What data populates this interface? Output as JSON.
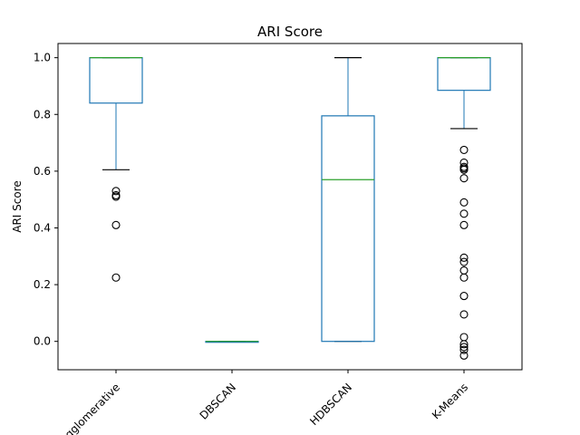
{
  "chart_data": {
    "type": "box",
    "title": "ARI Score",
    "ylabel": "ARI Score",
    "xlabel": "",
    "ylim": [
      -0.1,
      1.05
    ],
    "yticks": [
      0.0,
      0.2,
      0.4,
      0.6,
      0.8,
      1.0
    ],
    "ytick_labels": [
      "0.0",
      "0.2",
      "0.4",
      "0.6",
      "0.8",
      "1.0"
    ],
    "grid": false,
    "categories": [
      "Agglomerative",
      "DBSCAN",
      "HDBSCAN",
      "K-Means"
    ],
    "boxes": [
      {
        "category": "Agglomerative",
        "whisker_low": 0.605,
        "q1": 0.84,
        "median": 1.0,
        "q3": 1.0,
        "whisker_high": 1.0,
        "outliers": [
          0.53,
          0.515,
          0.51,
          0.41,
          0.225
        ]
      },
      {
        "category": "DBSCAN",
        "whisker_low": 0.0,
        "q1": 0.0,
        "median": 0.0,
        "q3": 0.0,
        "whisker_high": 0.0,
        "outliers": []
      },
      {
        "category": "HDBSCAN",
        "whisker_low": 0.0,
        "q1": 0.0,
        "median": 0.57,
        "q3": 0.795,
        "whisker_high": 1.0,
        "outliers": []
      },
      {
        "category": "K-Means",
        "whisker_low": 0.75,
        "q1": 0.885,
        "median": 1.0,
        "q3": 1.0,
        "whisker_high": 1.0,
        "outliers": [
          0.675,
          0.63,
          0.615,
          0.61,
          0.605,
          0.575,
          0.49,
          0.45,
          0.41,
          0.295,
          0.28,
          0.25,
          0.225,
          0.16,
          0.095,
          0.015,
          -0.01,
          -0.02,
          -0.03,
          -0.05
        ]
      }
    ],
    "colors": {
      "box": "#1f77b4",
      "median": "#2ca02c",
      "whisker": "#1f77b4",
      "cap": "#000000",
      "outlier": "#000000"
    }
  }
}
